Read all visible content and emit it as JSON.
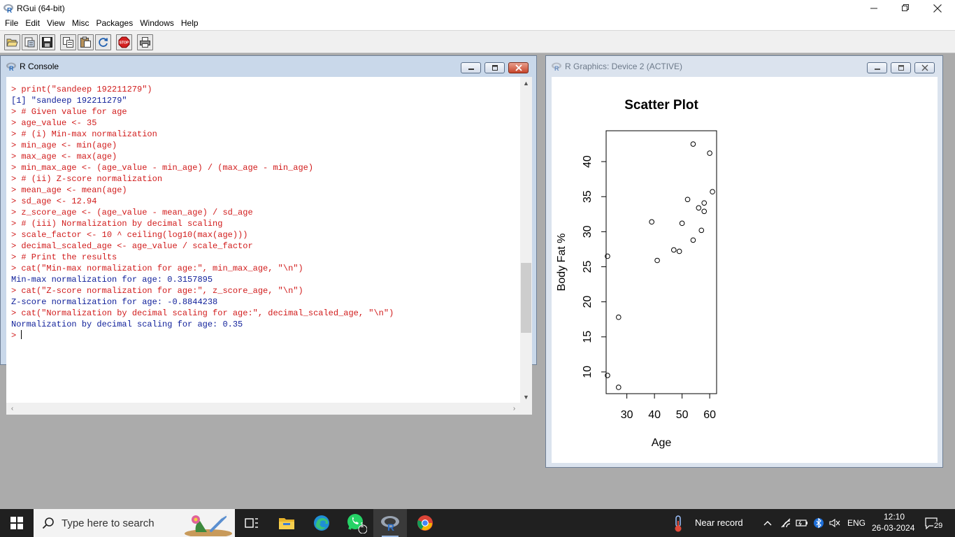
{
  "app": {
    "title": "RGui (64-bit)"
  },
  "menu": [
    "File",
    "Edit",
    "View",
    "Misc",
    "Packages",
    "Windows",
    "Help"
  ],
  "toolbar": {
    "buttons": [
      "open-script",
      "load-workspace",
      "save-workspace",
      "copy",
      "paste",
      "copy-paste",
      "stop",
      "print"
    ]
  },
  "console": {
    "title": "R Console",
    "lines": [
      {
        "kind": "in",
        "text": "> print(\"sandeep 192211279\")"
      },
      {
        "kind": "out",
        "text": "[1] \"sandeep 192211279\""
      },
      {
        "kind": "in",
        "text": "> # Given value for age"
      },
      {
        "kind": "in",
        "text": "> age_value <- 35"
      },
      {
        "kind": "in",
        "text": "> # (i) Min-max normalization"
      },
      {
        "kind": "in",
        "text": "> min_age <- min(age)"
      },
      {
        "kind": "in",
        "text": "> max_age <- max(age)"
      },
      {
        "kind": "in",
        "text": "> min_max_age <- (age_value - min_age) / (max_age - min_age)"
      },
      {
        "kind": "in",
        "text": "> # (ii) Z-score normalization"
      },
      {
        "kind": "in",
        "text": "> mean_age <- mean(age)"
      },
      {
        "kind": "in",
        "text": "> sd_age <- 12.94"
      },
      {
        "kind": "in",
        "text": "> z_score_age <- (age_value - mean_age) / sd_age"
      },
      {
        "kind": "in",
        "text": "> # (iii) Normalization by decimal scaling"
      },
      {
        "kind": "in",
        "text": "> scale_factor <- 10 ^ ceiling(log10(max(age)))"
      },
      {
        "kind": "in",
        "text": "> decimal_scaled_age <- age_value / scale_factor"
      },
      {
        "kind": "in",
        "text": "> # Print the results"
      },
      {
        "kind": "in",
        "text": "> cat(\"Min-max normalization for age:\", min_max_age, \"\\n\")"
      },
      {
        "kind": "out",
        "text": "Min-max normalization for age: 0.3157895"
      },
      {
        "kind": "in",
        "text": "> cat(\"Z-score normalization for age:\", z_score_age, \"\\n\")"
      },
      {
        "kind": "out",
        "text": "Z-score normalization for age: -0.8844238"
      },
      {
        "kind": "in",
        "text": "> cat(\"Normalization by decimal scaling for age:\", decimal_scaled_age, \"\\n\")"
      },
      {
        "kind": "out",
        "text": "Normalization by decimal scaling for age: 0.35"
      }
    ],
    "prompt": "> "
  },
  "graphics": {
    "title": "R Graphics: Device 2 (ACTIVE)"
  },
  "chart_data": {
    "type": "scatter",
    "title": "Scatter Plot",
    "xlabel": "Age",
    "ylabel": "Body Fat %",
    "xlim": [
      22.5,
      62.5
    ],
    "ylim": [
      6.9,
      44.4
    ],
    "xticks": [
      30,
      40,
      50,
      60
    ],
    "yticks": [
      10,
      15,
      20,
      25,
      30,
      35,
      40
    ],
    "grid": false,
    "points": [
      {
        "x": 23,
        "y": 9.5
      },
      {
        "x": 23,
        "y": 26.5
      },
      {
        "x": 27,
        "y": 7.8
      },
      {
        "x": 27,
        "y": 17.8
      },
      {
        "x": 39,
        "y": 31.4
      },
      {
        "x": 41,
        "y": 25.9
      },
      {
        "x": 47,
        "y": 27.4
      },
      {
        "x": 49,
        "y": 27.2
      },
      {
        "x": 50,
        "y": 31.2
      },
      {
        "x": 52,
        "y": 34.6
      },
      {
        "x": 54,
        "y": 42.5
      },
      {
        "x": 54,
        "y": 28.8
      },
      {
        "x": 56,
        "y": 33.4
      },
      {
        "x": 57,
        "y": 30.2
      },
      {
        "x": 58,
        "y": 34.1
      },
      {
        "x": 58,
        "y": 32.9
      },
      {
        "x": 60,
        "y": 41.2
      },
      {
        "x": 61,
        "y": 35.7
      }
    ]
  },
  "taskbar": {
    "search_placeholder": "Type here to search",
    "apps": [
      "task-view",
      "file-explorer",
      "edge",
      "whatsapp",
      "rgui",
      "chrome"
    ],
    "whatsapp_badge": "1",
    "weather_text": "Near record",
    "lang": "ENG",
    "time": "12:10",
    "date": "26-03-2024",
    "notifications": "29"
  },
  "colors": {
    "console_input": "#d11a1a",
    "console_output": "#10209a",
    "taskbar": "#202020"
  }
}
